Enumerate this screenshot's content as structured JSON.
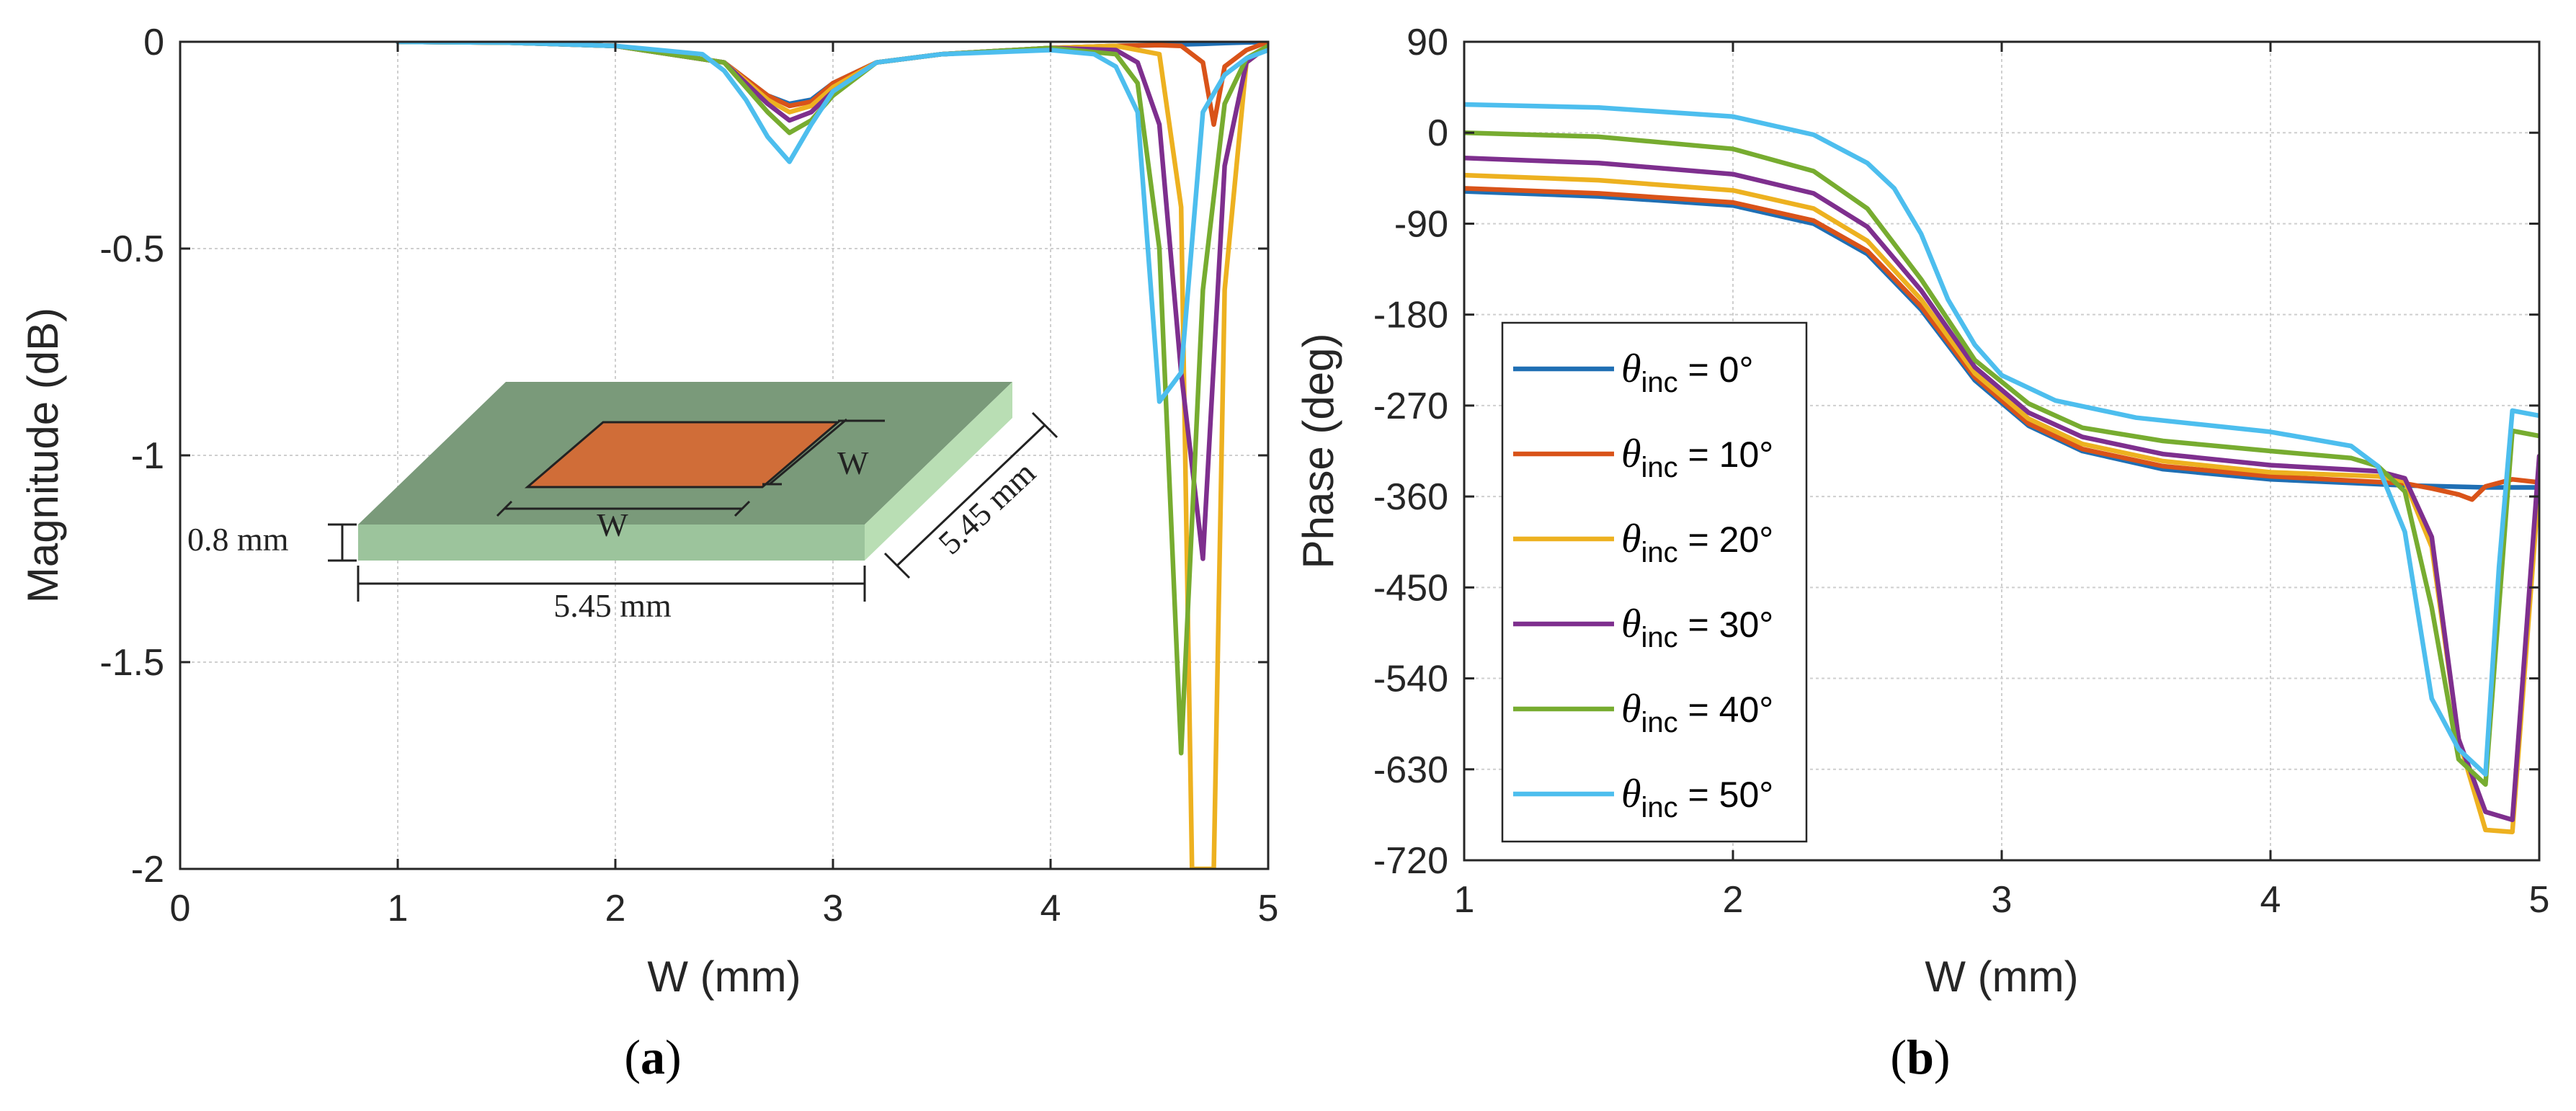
{
  "chart_data": [
    {
      "type": "line",
      "panel_label": "a",
      "xlabel": "W (mm)",
      "ylabel": "Magnitude (dB)",
      "xlim": [
        0,
        5
      ],
      "ylim": [
        -2,
        0
      ],
      "xticks": [
        0,
        1,
        2,
        3,
        4,
        5
      ],
      "xtick_labels": [
        "0",
        "1",
        "2",
        "3",
        "4",
        "5"
      ],
      "yticks": [
        0,
        -0.5,
        -1,
        -1.5,
        -2
      ],
      "ytick_labels": [
        "0",
        "-0.5",
        "-1",
        "-1.5",
        "-2"
      ],
      "grid": true,
      "inset": {
        "labels": {
          "thickness": "0.8 mm",
          "width": "5.45 mm",
          "depth": "5.45 mm",
          "patch_w1": "W",
          "patch_w2": "W"
        },
        "colors": {
          "substrate_top": "#7a9a7a",
          "substrate_front": "#9cc49c",
          "substrate_side": "#b9deb4",
          "patch": "#d06d38"
        }
      },
      "series": [
        {
          "name": "θinc = 0°",
          "color": "#1f6fb4",
          "x": [
            1,
            1.5,
            2,
            2.5,
            2.6,
            2.7,
            2.8,
            2.9,
            3,
            3.2,
            3.5,
            4,
            4.3,
            4.5,
            4.7,
            4.8,
            5
          ],
          "y": [
            0,
            -0.002,
            -0.01,
            -0.05,
            -0.09,
            -0.13,
            -0.15,
            -0.14,
            -0.1,
            -0.05,
            -0.03,
            -0.015,
            -0.01,
            -0.008,
            -0.005,
            -0.003,
            0
          ]
        },
        {
          "name": "θinc = 10°",
          "color": "#d95319",
          "x": [
            1,
            1.5,
            2,
            2.5,
            2.6,
            2.7,
            2.8,
            2.9,
            3,
            3.2,
            3.5,
            4,
            4.3,
            4.5,
            4.6,
            4.7,
            4.75,
            4.8,
            4.9,
            5
          ],
          "y": [
            0,
            -0.002,
            -0.01,
            -0.05,
            -0.09,
            -0.13,
            -0.155,
            -0.145,
            -0.1,
            -0.05,
            -0.03,
            -0.015,
            -0.01,
            -0.008,
            -0.01,
            -0.05,
            -0.2,
            -0.06,
            -0.02,
            0
          ]
        },
        {
          "name": "θinc = 20°",
          "color": "#edb120",
          "x": [
            1,
            1.5,
            2,
            2.5,
            2.6,
            2.7,
            2.8,
            2.9,
            3,
            3.2,
            3.5,
            4,
            4.3,
            4.5,
            4.6,
            4.65,
            4.7,
            4.75,
            4.8,
            4.9,
            5
          ],
          "y": [
            0,
            -0.002,
            -0.01,
            -0.05,
            -0.095,
            -0.14,
            -0.17,
            -0.155,
            -0.11,
            -0.05,
            -0.03,
            -0.015,
            -0.01,
            -0.03,
            -0.4,
            -2,
            -2,
            -2,
            -0.6,
            -0.05,
            -0.01
          ]
        },
        {
          "name": "θinc = 30°",
          "color": "#7e2f8e",
          "x": [
            1,
            1.5,
            2,
            2.5,
            2.6,
            2.7,
            2.8,
            2.9,
            3,
            3.2,
            3.5,
            4,
            4.3,
            4.4,
            4.5,
            4.6,
            4.7,
            4.8,
            4.9,
            5
          ],
          "y": [
            0,
            -0.002,
            -0.01,
            -0.05,
            -0.1,
            -0.15,
            -0.19,
            -0.17,
            -0.12,
            -0.05,
            -0.03,
            -0.015,
            -0.02,
            -0.05,
            -0.2,
            -0.8,
            -1.25,
            -0.3,
            -0.05,
            -0.01
          ]
        },
        {
          "name": "θinc = 40°",
          "color": "#77ac30",
          "x": [
            1,
            1.5,
            2,
            2.5,
            2.6,
            2.7,
            2.8,
            2.9,
            3,
            3.2,
            3.5,
            4,
            4.3,
            4.4,
            4.5,
            4.6,
            4.7,
            4.8,
            4.9,
            5
          ],
          "y": [
            0,
            -0.002,
            -0.01,
            -0.05,
            -0.11,
            -0.17,
            -0.22,
            -0.19,
            -0.13,
            -0.05,
            -0.03,
            -0.015,
            -0.03,
            -0.1,
            -0.5,
            -1.72,
            -0.6,
            -0.15,
            -0.04,
            -0.01
          ]
        },
        {
          "name": "θinc = 50°",
          "color": "#4dbeee",
          "x": [
            1,
            1.5,
            2,
            2.4,
            2.5,
            2.6,
            2.7,
            2.8,
            2.9,
            3,
            3.2,
            3.5,
            4,
            4.2,
            4.3,
            4.4,
            4.5,
            4.6,
            4.7,
            4.8,
            4.9,
            5
          ],
          "y": [
            0,
            -0.002,
            -0.01,
            -0.03,
            -0.07,
            -0.14,
            -0.23,
            -0.29,
            -0.2,
            -0.12,
            -0.05,
            -0.03,
            -0.02,
            -0.03,
            -0.06,
            -0.17,
            -0.87,
            -0.8,
            -0.17,
            -0.08,
            -0.04,
            -0.02
          ]
        }
      ]
    },
    {
      "type": "line",
      "panel_label": "b",
      "xlabel": "W (mm)",
      "ylabel": "Phase (deg)",
      "xlim": [
        1,
        5
      ],
      "ylim": [
        -720,
        90
      ],
      "xticks": [
        1,
        2,
        3,
        4,
        5
      ],
      "xtick_labels": [
        "1",
        "2",
        "3",
        "4",
        "5"
      ],
      "yticks": [
        90,
        0,
        -90,
        -180,
        -270,
        -360,
        -450,
        -540,
        -630,
        -720
      ],
      "ytick_labels": [
        "90",
        "0",
        "-90",
        "-180",
        "-270",
        "-360",
        "-450",
        "-540",
        "-630",
        "-720"
      ],
      "grid": true,
      "legend_loc": "lower-left",
      "series": [
        {
          "name": "θinc = 0°",
          "color": "#1f6fb4",
          "x": [
            1,
            1.5,
            2,
            2.3,
            2.5,
            2.7,
            2.9,
            3.1,
            3.3,
            3.6,
            4,
            4.5,
            4.8,
            5
          ],
          "y": [
            -58,
            -63,
            -72,
            -90,
            -120,
            -175,
            -245,
            -290,
            -315,
            -333,
            -343,
            -349,
            -351,
            -351
          ]
        },
        {
          "name": "θinc = 10°",
          "color": "#d95319",
          "x": [
            1,
            1.5,
            2,
            2.3,
            2.5,
            2.7,
            2.9,
            3.1,
            3.3,
            3.6,
            4,
            4.5,
            4.6,
            4.7,
            4.75,
            4.8,
            4.9,
            5
          ],
          "y": [
            -55,
            -60,
            -69,
            -87,
            -117,
            -172,
            -242,
            -288,
            -313,
            -330,
            -340,
            -347,
            -352,
            -358,
            -363,
            -350,
            -343,
            -346
          ]
        },
        {
          "name": "θinc = 20°",
          "color": "#edb120",
          "x": [
            1,
            1.5,
            2,
            2.3,
            2.5,
            2.7,
            2.9,
            3.1,
            3.3,
            3.6,
            4,
            4.4,
            4.5,
            4.6,
            4.7,
            4.8,
            4.9,
            5
          ],
          "y": [
            -42,
            -47,
            -57,
            -75,
            -107,
            -165,
            -238,
            -283,
            -308,
            -325,
            -336,
            -340,
            -345,
            -410,
            -600,
            -690,
            -692,
            -345
          ]
        },
        {
          "name": "θinc = 30°",
          "color": "#7e2f8e",
          "x": [
            1,
            1.5,
            2,
            2.3,
            2.5,
            2.7,
            2.9,
            3.1,
            3.3,
            3.6,
            4,
            4.4,
            4.5,
            4.6,
            4.7,
            4.8,
            4.9,
            5
          ],
          "y": [
            -25,
            -30,
            -41,
            -60,
            -93,
            -156,
            -232,
            -277,
            -301,
            -318,
            -329,
            -335,
            -342,
            -400,
            -600,
            -672,
            -680,
            -320
          ]
        },
        {
          "name": "θinc = 40°",
          "color": "#77ac30",
          "x": [
            1,
            1.5,
            2,
            2.3,
            2.5,
            2.7,
            2.9,
            3.1,
            3.3,
            3.6,
            4,
            4.3,
            4.4,
            4.5,
            4.6,
            4.7,
            4.8,
            4.9,
            5
          ],
          "y": [
            0,
            -4,
            -16,
            -38,
            -75,
            -145,
            -225,
            -268,
            -292,
            -305,
            -315,
            -322,
            -330,
            -355,
            -470,
            -620,
            -645,
            -295,
            -300
          ]
        },
        {
          "name": "θinc = 50°",
          "color": "#4dbeee",
          "x": [
            1,
            1.5,
            2,
            2.3,
            2.5,
            2.6,
            2.7,
            2.8,
            2.9,
            3,
            3.2,
            3.5,
            4,
            4.3,
            4.4,
            4.5,
            4.6,
            4.7,
            4.8,
            4.85,
            4.9,
            5
          ],
          "y": [
            28,
            25,
            16,
            -2,
            -30,
            -55,
            -100,
            -165,
            -210,
            -240,
            -265,
            -282,
            -296,
            -310,
            -330,
            -395,
            -560,
            -610,
            -635,
            -430,
            -275,
            -280
          ]
        }
      ]
    }
  ],
  "captions": {
    "a": "a",
    "b": "b"
  }
}
